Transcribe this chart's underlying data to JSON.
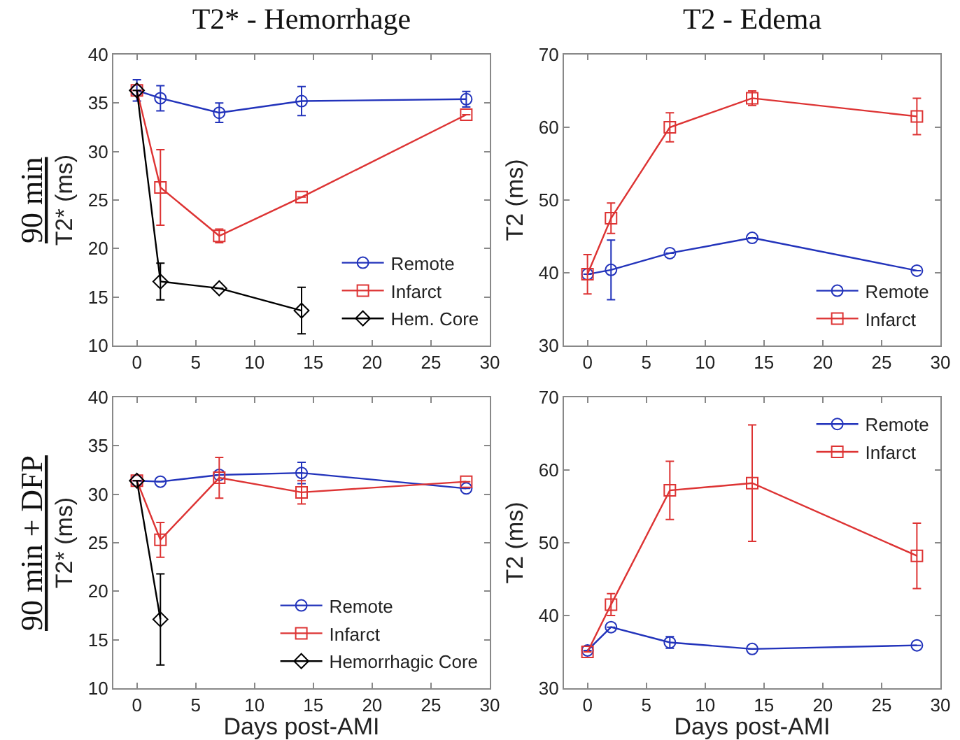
{
  "chart_data": [
    {
      "type": "line",
      "title": "T2* - Hemorrhage",
      "ylabel": "T2* (ms)",
      "annotations": [
        "90 min"
      ],
      "xlim": [
        -2,
        30
      ],
      "xticks": [
        0,
        5,
        10,
        15,
        20,
        25,
        30
      ],
      "ylim": [
        10,
        40
      ],
      "yticks": [
        10,
        15,
        20,
        25,
        30,
        35,
        40
      ],
      "grid": false,
      "legend": "bottom right",
      "line_style": "solid",
      "series": [
        {
          "name": "Remote",
          "color": "#2233bb",
          "marker": "circle",
          "x": [
            0,
            2,
            7,
            14,
            28
          ],
          "values": [
            36.3,
            35.5,
            34.0,
            35.2,
            35.4
          ],
          "errors": [
            1.1,
            1.3,
            1.0,
            1.5,
            0.8
          ]
        },
        {
          "name": "Infarct",
          "color": "#dd3333",
          "marker": "square",
          "x": [
            0,
            2,
            7,
            14,
            28
          ],
          "values": [
            36.3,
            26.3,
            21.3,
            25.3,
            33.8
          ],
          "errors": [
            null,
            3.9,
            0.7,
            null,
            null
          ]
        },
        {
          "name": "Hem. Core",
          "color": "#000000",
          "marker": "diamond",
          "x": [
            0,
            2,
            7,
            14
          ],
          "values": [
            36.3,
            16.6,
            15.9,
            13.6
          ],
          "errors": [
            null,
            1.9,
            null,
            2.4
          ]
        }
      ]
    },
    {
      "type": "line",
      "title": "T2 - Edema",
      "ylabel": "T2 (ms)",
      "xlim": [
        -2,
        30
      ],
      "xticks": [
        0,
        5,
        10,
        15,
        20,
        25,
        30
      ],
      "ylim": [
        30,
        70
      ],
      "yticks": [
        30,
        40,
        50,
        60,
        70
      ],
      "grid": false,
      "legend": "bottom right",
      "line_style": "solid",
      "series": [
        {
          "name": "Remote",
          "color": "#2233bb",
          "marker": "circle",
          "x": [
            0,
            2,
            7,
            14,
            28
          ],
          "values": [
            39.8,
            40.4,
            42.7,
            44.8,
            40.3
          ],
          "errors": [
            null,
            4.1,
            null,
            null,
            null
          ]
        },
        {
          "name": "Infarct",
          "color": "#dd3333",
          "marker": "square",
          "x": [
            0,
            2,
            7,
            14,
            28
          ],
          "values": [
            39.8,
            47.5,
            60.0,
            64.0,
            61.5
          ],
          "errors": [
            2.7,
            2.1,
            2.0,
            1.0,
            2.5
          ]
        }
      ]
    },
    {
      "type": "line",
      "xlabel": "Days post-AMI",
      "ylabel": "T2* (ms)",
      "annotations": [
        "90 min + DFP"
      ],
      "xlim": [
        -2,
        30
      ],
      "xticks": [
        0,
        5,
        10,
        15,
        20,
        25,
        30
      ],
      "ylim": [
        10,
        40
      ],
      "yticks": [
        10,
        15,
        20,
        25,
        30,
        35,
        40
      ],
      "grid": false,
      "legend": "bottom right",
      "line_style": "solid",
      "series": [
        {
          "name": "Remote",
          "color": "#2233bb",
          "marker": "circle",
          "x": [
            0,
            2,
            7,
            14,
            28
          ],
          "values": [
            31.4,
            31.3,
            32.0,
            32.2,
            30.6
          ],
          "errors": [
            null,
            null,
            null,
            1.1,
            null
          ]
        },
        {
          "name": "Infarct",
          "color": "#dd3333",
          "marker": "square",
          "x": [
            0,
            2,
            7,
            14,
            28
          ],
          "values": [
            31.4,
            25.3,
            31.7,
            30.2,
            31.3
          ],
          "errors": [
            null,
            1.8,
            2.1,
            1.2,
            null
          ]
        },
        {
          "name": "Hemorrhagic Core",
          "color": "#000000",
          "marker": "diamond",
          "x": [
            0,
            2
          ],
          "values": [
            31.4,
            17.1
          ],
          "errors": [
            null,
            4.7
          ]
        }
      ]
    },
    {
      "type": "line",
      "xlabel": "Days post-AMI",
      "ylabel": "T2 (ms)",
      "xlim": [
        -2,
        30
      ],
      "xticks": [
        0,
        5,
        10,
        15,
        20,
        25,
        30
      ],
      "ylim": [
        30,
        70
      ],
      "yticks": [
        30,
        40,
        50,
        60,
        70
      ],
      "grid": false,
      "legend": "top right",
      "line_style": "solid",
      "series": [
        {
          "name": "Remote",
          "color": "#2233bb",
          "marker": "circle",
          "x": [
            0,
            2,
            7,
            14,
            28
          ],
          "values": [
            35.2,
            38.4,
            36.3,
            35.4,
            35.9
          ],
          "errors": [
            null,
            null,
            0.8,
            null,
            null
          ]
        },
        {
          "name": "Infarct",
          "color": "#dd3333",
          "marker": "square",
          "x": [
            0,
            2,
            7,
            14,
            28
          ],
          "values": [
            35.0,
            41.5,
            57.2,
            58.2,
            48.2
          ],
          "errors": [
            null,
            1.5,
            4.0,
            8.0,
            4.5
          ]
        }
      ]
    }
  ]
}
